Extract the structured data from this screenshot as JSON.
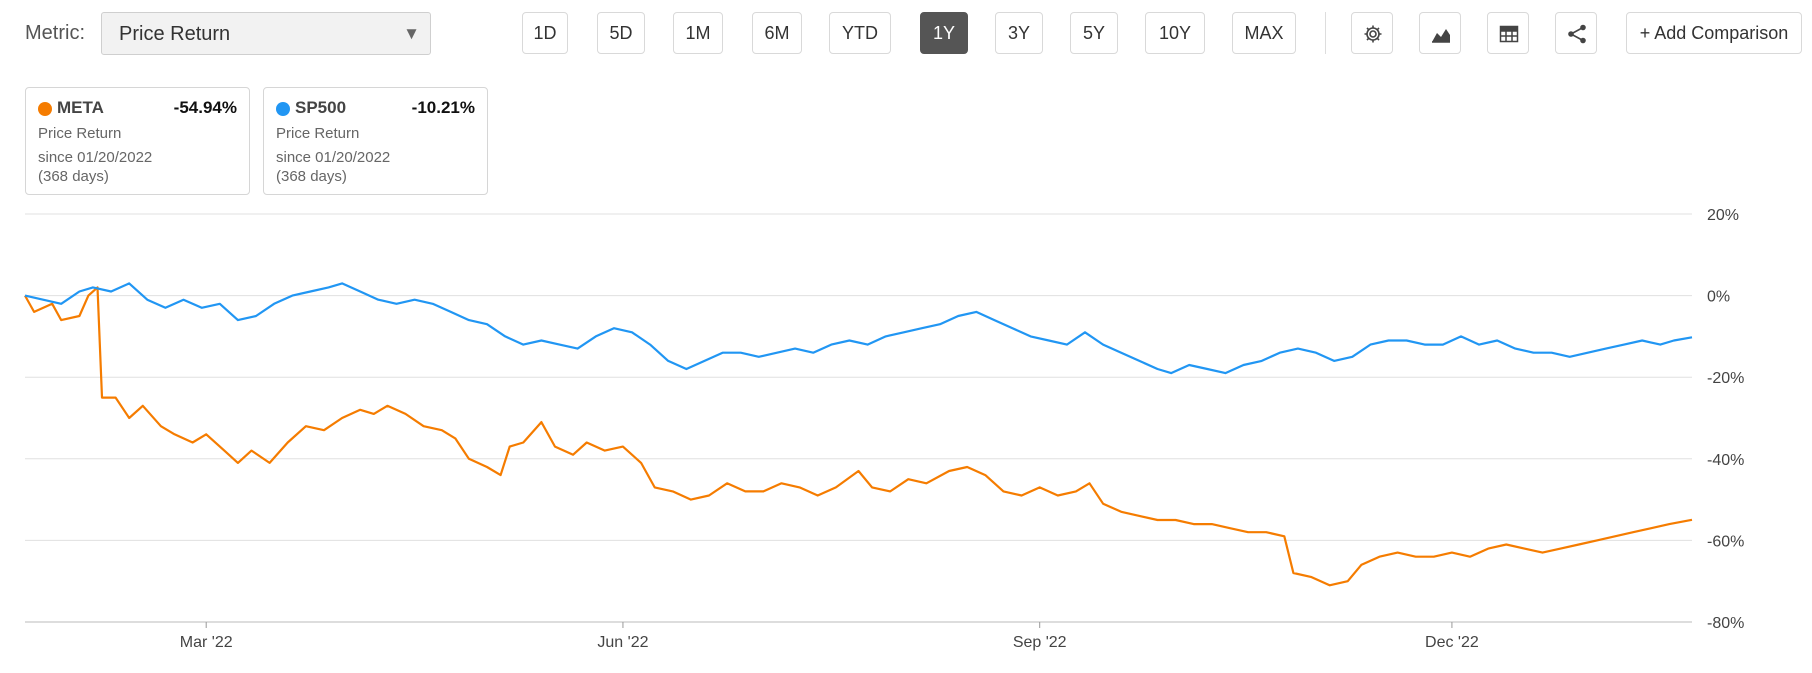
{
  "metric": {
    "label": "Metric:",
    "selected": "Price Return",
    "caret": "▼"
  },
  "toolbar": {
    "ranges": [
      "1D",
      "5D",
      "1M",
      "6M",
      "YTD",
      "1Y",
      "3Y",
      "5Y",
      "10Y",
      "MAX"
    ],
    "active_range": "1Y",
    "icons": [
      "gear-icon",
      "chart-type-icon",
      "table-icon",
      "share-icon"
    ],
    "add_label": "+ Add Comparison"
  },
  "cards": [
    {
      "ticker": "META",
      "value": "-54.94%",
      "metric": "Price Return",
      "since": "since 01/20/2022",
      "days": "(368 days)",
      "color": "#f57c00"
    },
    {
      "ticker": "SP500",
      "value": "-10.21%",
      "metric": "Price Return",
      "since": "since 01/20/2022",
      "days": "(368 days)",
      "color": "#2196f3"
    }
  ],
  "chart_data": {
    "type": "line",
    "x_start": "2022-01-20",
    "x_end": "2023-01-23",
    "x_ticks": [
      {
        "date": "2022-03-01",
        "label": "Mar '22"
      },
      {
        "date": "2022-06-01",
        "label": "Jun '22"
      },
      {
        "date": "2022-09-01",
        "label": "Sep '22"
      },
      {
        "date": "2022-12-01",
        "label": "Dec '22"
      }
    ],
    "ylim": [
      -80,
      20
    ],
    "y_ticks": [
      20,
      0,
      -20,
      -40,
      -60,
      -80
    ],
    "y_tick_labels": [
      "20%",
      "0%",
      "-20%",
      "-40%",
      "-60%",
      "-80%"
    ],
    "grid": true,
    "series": [
      {
        "name": "META",
        "color": "#f57c00",
        "points": [
          [
            "2022-01-20",
            0
          ],
          [
            "2022-01-22",
            -4
          ],
          [
            "2022-01-26",
            -2
          ],
          [
            "2022-01-28",
            -6
          ],
          [
            "2022-02-01",
            -5
          ],
          [
            "2022-02-03",
            0
          ],
          [
            "2022-02-05",
            2
          ],
          [
            "2022-02-06",
            -25
          ],
          [
            "2022-02-09",
            -25
          ],
          [
            "2022-02-12",
            -30
          ],
          [
            "2022-02-15",
            -27
          ],
          [
            "2022-02-19",
            -32
          ],
          [
            "2022-02-22",
            -34
          ],
          [
            "2022-02-26",
            -36
          ],
          [
            "2022-03-01",
            -34
          ],
          [
            "2022-03-05",
            -38
          ],
          [
            "2022-03-08",
            -41
          ],
          [
            "2022-03-11",
            -38
          ],
          [
            "2022-03-15",
            -41
          ],
          [
            "2022-03-19",
            -36
          ],
          [
            "2022-03-23",
            -32
          ],
          [
            "2022-03-27",
            -33
          ],
          [
            "2022-03-31",
            -30
          ],
          [
            "2022-04-04",
            -28
          ],
          [
            "2022-04-07",
            -29
          ],
          [
            "2022-04-10",
            -27
          ],
          [
            "2022-04-14",
            -29
          ],
          [
            "2022-04-18",
            -32
          ],
          [
            "2022-04-22",
            -33
          ],
          [
            "2022-04-25",
            -35
          ],
          [
            "2022-04-28",
            -40
          ],
          [
            "2022-05-02",
            -42
          ],
          [
            "2022-05-05",
            -44
          ],
          [
            "2022-05-07",
            -37
          ],
          [
            "2022-05-10",
            -36
          ],
          [
            "2022-05-14",
            -31
          ],
          [
            "2022-05-17",
            -37
          ],
          [
            "2022-05-21",
            -39
          ],
          [
            "2022-05-24",
            -36
          ],
          [
            "2022-05-28",
            -38
          ],
          [
            "2022-06-01",
            -37
          ],
          [
            "2022-06-05",
            -41
          ],
          [
            "2022-06-08",
            -47
          ],
          [
            "2022-06-12",
            -48
          ],
          [
            "2022-06-16",
            -50
          ],
          [
            "2022-06-20",
            -49
          ],
          [
            "2022-06-24",
            -46
          ],
          [
            "2022-06-28",
            -48
          ],
          [
            "2022-07-02",
            -48
          ],
          [
            "2022-07-06",
            -46
          ],
          [
            "2022-07-10",
            -47
          ],
          [
            "2022-07-14",
            -49
          ],
          [
            "2022-07-18",
            -47
          ],
          [
            "2022-07-23",
            -43
          ],
          [
            "2022-07-26",
            -47
          ],
          [
            "2022-07-30",
            -48
          ],
          [
            "2022-08-03",
            -45
          ],
          [
            "2022-08-07",
            -46
          ],
          [
            "2022-08-12",
            -43
          ],
          [
            "2022-08-16",
            -42
          ],
          [
            "2022-08-20",
            -44
          ],
          [
            "2022-08-24",
            -48
          ],
          [
            "2022-08-28",
            -49
          ],
          [
            "2022-09-01",
            -47
          ],
          [
            "2022-09-05",
            -49
          ],
          [
            "2022-09-09",
            -48
          ],
          [
            "2022-09-12",
            -46
          ],
          [
            "2022-09-15",
            -51
          ],
          [
            "2022-09-19",
            -53
          ],
          [
            "2022-09-23",
            -54
          ],
          [
            "2022-09-27",
            -55
          ],
          [
            "2022-10-01",
            -55
          ],
          [
            "2022-10-05",
            -56
          ],
          [
            "2022-10-09",
            -56
          ],
          [
            "2022-10-13",
            -57
          ],
          [
            "2022-10-17",
            -58
          ],
          [
            "2022-10-21",
            -58
          ],
          [
            "2022-10-25",
            -59
          ],
          [
            "2022-10-27",
            -68
          ],
          [
            "2022-10-31",
            -69
          ],
          [
            "2022-11-04",
            -71
          ],
          [
            "2022-11-08",
            -70
          ],
          [
            "2022-11-11",
            -66
          ],
          [
            "2022-11-15",
            -64
          ],
          [
            "2022-11-19",
            -63
          ],
          [
            "2022-11-23",
            -64
          ],
          [
            "2022-11-27",
            -64
          ],
          [
            "2022-12-01",
            -63
          ],
          [
            "2022-12-05",
            -64
          ],
          [
            "2022-12-09",
            -62
          ],
          [
            "2022-12-13",
            -61
          ],
          [
            "2022-12-17",
            -62
          ],
          [
            "2022-12-21",
            -63
          ],
          [
            "2022-12-25",
            -62
          ],
          [
            "2022-12-29",
            -61
          ],
          [
            "2023-01-02",
            -60
          ],
          [
            "2023-01-06",
            -59
          ],
          [
            "2023-01-10",
            -58
          ],
          [
            "2023-01-14",
            -57
          ],
          [
            "2023-01-18",
            -56
          ],
          [
            "2023-01-23",
            -54.94
          ]
        ]
      },
      {
        "name": "SP500",
        "color": "#2196f3",
        "points": [
          [
            "2022-01-20",
            0
          ],
          [
            "2022-01-24",
            -1
          ],
          [
            "2022-01-28",
            -2
          ],
          [
            "2022-02-01",
            1
          ],
          [
            "2022-02-04",
            2
          ],
          [
            "2022-02-08",
            1
          ],
          [
            "2022-02-12",
            3
          ],
          [
            "2022-02-16",
            -1
          ],
          [
            "2022-02-20",
            -3
          ],
          [
            "2022-02-24",
            -1
          ],
          [
            "2022-02-28",
            -3
          ],
          [
            "2022-03-04",
            -2
          ],
          [
            "2022-03-08",
            -6
          ],
          [
            "2022-03-12",
            -5
          ],
          [
            "2022-03-16",
            -2
          ],
          [
            "2022-03-20",
            0
          ],
          [
            "2022-03-24",
            1
          ],
          [
            "2022-03-28",
            2
          ],
          [
            "2022-03-31",
            3
          ],
          [
            "2022-04-04",
            1
          ],
          [
            "2022-04-08",
            -1
          ],
          [
            "2022-04-12",
            -2
          ],
          [
            "2022-04-16",
            -1
          ],
          [
            "2022-04-20",
            -2
          ],
          [
            "2022-04-24",
            -4
          ],
          [
            "2022-04-28",
            -6
          ],
          [
            "2022-05-02",
            -7
          ],
          [
            "2022-05-06",
            -10
          ],
          [
            "2022-05-10",
            -12
          ],
          [
            "2022-05-14",
            -11
          ],
          [
            "2022-05-18",
            -12
          ],
          [
            "2022-05-22",
            -13
          ],
          [
            "2022-05-26",
            -10
          ],
          [
            "2022-05-30",
            -8
          ],
          [
            "2022-06-03",
            -9
          ],
          [
            "2022-06-07",
            -12
          ],
          [
            "2022-06-11",
            -16
          ],
          [
            "2022-06-15",
            -18
          ],
          [
            "2022-06-19",
            -16
          ],
          [
            "2022-06-23",
            -14
          ],
          [
            "2022-06-27",
            -14
          ],
          [
            "2022-07-01",
            -15
          ],
          [
            "2022-07-05",
            -14
          ],
          [
            "2022-07-09",
            -13
          ],
          [
            "2022-07-13",
            -14
          ],
          [
            "2022-07-17",
            -12
          ],
          [
            "2022-07-21",
            -11
          ],
          [
            "2022-07-25",
            -12
          ],
          [
            "2022-07-29",
            -10
          ],
          [
            "2022-08-02",
            -9
          ],
          [
            "2022-08-06",
            -8
          ],
          [
            "2022-08-10",
            -7
          ],
          [
            "2022-08-14",
            -5
          ],
          [
            "2022-08-18",
            -4
          ],
          [
            "2022-08-22",
            -6
          ],
          [
            "2022-08-26",
            -8
          ],
          [
            "2022-08-30",
            -10
          ],
          [
            "2022-09-03",
            -11
          ],
          [
            "2022-09-07",
            -12
          ],
          [
            "2022-09-11",
            -9
          ],
          [
            "2022-09-15",
            -12
          ],
          [
            "2022-09-19",
            -14
          ],
          [
            "2022-09-23",
            -16
          ],
          [
            "2022-09-27",
            -18
          ],
          [
            "2022-09-30",
            -19
          ],
          [
            "2022-10-04",
            -17
          ],
          [
            "2022-10-08",
            -18
          ],
          [
            "2022-10-12",
            -19
          ],
          [
            "2022-10-16",
            -17
          ],
          [
            "2022-10-20",
            -16
          ],
          [
            "2022-10-24",
            -14
          ],
          [
            "2022-10-28",
            -13
          ],
          [
            "2022-11-01",
            -14
          ],
          [
            "2022-11-05",
            -16
          ],
          [
            "2022-11-09",
            -15
          ],
          [
            "2022-11-13",
            -12
          ],
          [
            "2022-11-17",
            -11
          ],
          [
            "2022-11-21",
            -11
          ],
          [
            "2022-11-25",
            -12
          ],
          [
            "2022-11-29",
            -12
          ],
          [
            "2022-12-03",
            -10
          ],
          [
            "2022-12-07",
            -12
          ],
          [
            "2022-12-11",
            -11
          ],
          [
            "2022-12-15",
            -13
          ],
          [
            "2022-12-19",
            -14
          ],
          [
            "2022-12-23",
            -14
          ],
          [
            "2022-12-27",
            -15
          ],
          [
            "2022-12-31",
            -14
          ],
          [
            "2023-01-04",
            -13
          ],
          [
            "2023-01-08",
            -12
          ],
          [
            "2023-01-12",
            -11
          ],
          [
            "2023-01-16",
            -12
          ],
          [
            "2023-01-19",
            -11
          ],
          [
            "2023-01-23",
            -10.21
          ]
        ]
      }
    ]
  }
}
